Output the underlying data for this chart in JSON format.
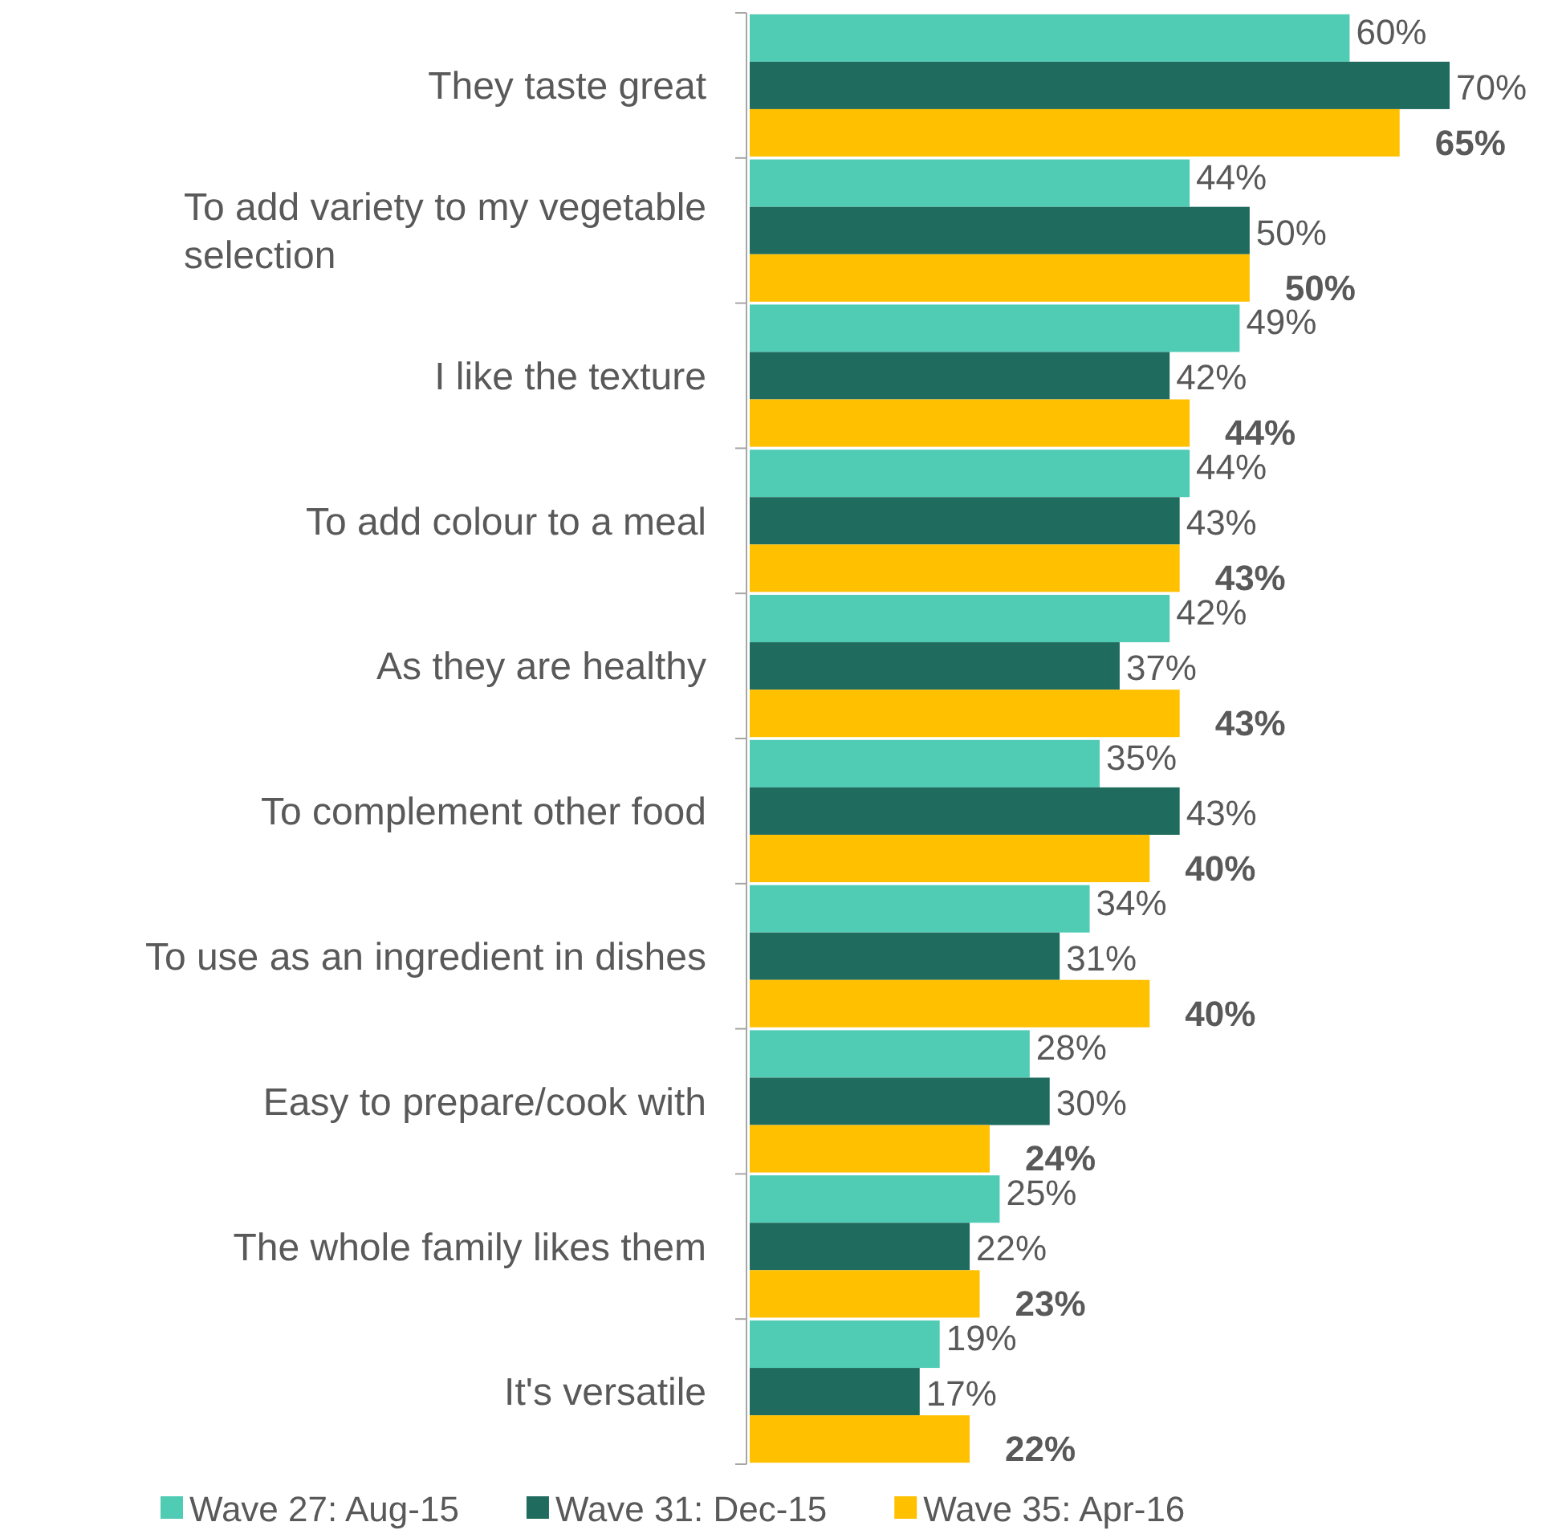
{
  "chart_data": {
    "type": "bar",
    "orientation": "horizontal",
    "categories": [
      "They taste great",
      "To add variety to my vegetable selection",
      "I like the texture",
      "To add colour to a meal",
      "As they are healthy",
      "To complement other food",
      "To use as an ingredient in dishes",
      "Easy to prepare/cook with",
      "The whole family likes them",
      "It's versatile"
    ],
    "series": [
      {
        "name": "Wave 27: Aug-15",
        "color": "#50cbb4",
        "values": [
          60,
          44,
          49,
          44,
          42,
          35,
          34,
          28,
          25,
          19
        ],
        "value_labels": [
          "60%",
          "44%",
          "49%",
          "44%",
          "42%",
          "35%",
          "34%",
          "28%",
          "25%",
          "19%"
        ]
      },
      {
        "name": "Wave 31: Dec-15",
        "color": "#1f6b5d",
        "values": [
          70,
          50,
          42,
          43,
          37,
          43,
          31,
          30,
          22,
          17
        ],
        "value_labels": [
          "70%",
          "50%",
          "42%",
          "43%",
          "37%",
          "43%",
          "31%",
          "30%",
          "22%",
          "17%"
        ]
      },
      {
        "name": "Wave 35: Apr-16",
        "color": "#ffc000",
        "values": [
          65,
          50,
          44,
          43,
          43,
          40,
          40,
          24,
          23,
          22
        ],
        "value_labels": [
          "65%",
          "50%",
          "44%",
          "43%",
          "43%",
          "40%",
          "40%",
          "24%",
          "23%",
          "22%"
        ]
      }
    ],
    "legend": "bottom"
  }
}
